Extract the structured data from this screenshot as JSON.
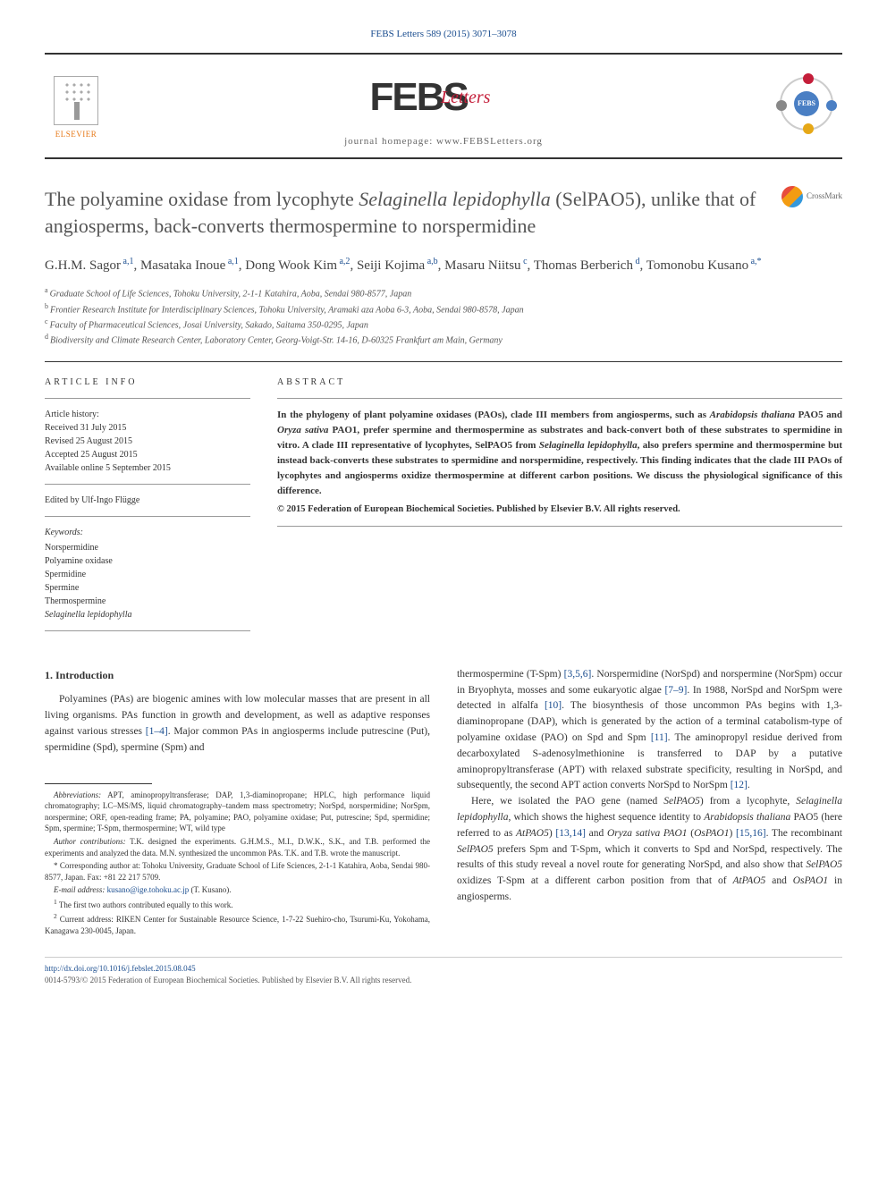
{
  "header": {
    "citation": "FEBS Letters 589 (2015) 3071–3078",
    "elsevier_label": "ELSEVIER",
    "journal_name_main": "FEBS",
    "journal_name_sub": "Letters",
    "homepage_label": "journal homepage: ",
    "homepage_url": "www.FEBSLetters.org",
    "febs_badge_text": "FEBS",
    "crossmark_label": "CrossMark"
  },
  "article": {
    "title_pre": "The polyamine oxidase from lycophyte ",
    "title_italic": "Selaginella lepidophylla",
    "title_post": " (SelPAO5), unlike that of angiosperms, back-converts thermospermine to norspermidine",
    "authors_html": "G.H.M. Sagor|a,1|, Masataka Inoue|a,1|, Dong Wook Kim|a,2|, Seiji Kojima|a,b|, Masaru Niitsu|c|, Thomas Berberich|d|, Tomonobu Kusano|a,*|",
    "authors": [
      {
        "name": "G.H.M. Sagor",
        "sup": "a,1"
      },
      {
        "name": "Masataka Inoue",
        "sup": "a,1"
      },
      {
        "name": "Dong Wook Kim",
        "sup": "a,2"
      },
      {
        "name": "Seiji Kojima",
        "sup": "a,b"
      },
      {
        "name": "Masaru Niitsu",
        "sup": "c"
      },
      {
        "name": "Thomas Berberich",
        "sup": "d"
      },
      {
        "name": "Tomonobu Kusano",
        "sup": "a,*"
      }
    ],
    "affiliations": [
      {
        "sup": "a",
        "text": "Graduate School of Life Sciences, Tohoku University, 2-1-1 Katahira, Aoba, Sendai 980-8577, Japan"
      },
      {
        "sup": "b",
        "text": "Frontier Research Institute for Interdisciplinary Sciences, Tohoku University, Aramaki aza Aoba 6-3, Aoba, Sendai 980-8578, Japan"
      },
      {
        "sup": "c",
        "text": "Faculty of Pharmaceutical Sciences, Josai University, Sakado, Saitama 350-0295, Japan"
      },
      {
        "sup": "d",
        "text": "Biodiversity and Climate Research Center, Laboratory Center, Georg-Voigt-Str. 14-16, D-60325 Frankfurt am Main, Germany"
      }
    ]
  },
  "info": {
    "heading": "ARTICLE INFO",
    "history_label": "Article history:",
    "received": "Received 31 July 2015",
    "revised": "Revised 25 August 2015",
    "accepted": "Accepted 25 August 2015",
    "online": "Available online 5 September 2015",
    "editor": "Edited by Ulf-Ingo Flügge",
    "keywords_label": "Keywords:",
    "keywords": [
      "Norspermidine",
      "Polyamine oxidase",
      "Spermidine",
      "Spermine",
      "Thermospermine",
      "Selaginella lepidophylla"
    ]
  },
  "abstract": {
    "heading": "ABSTRACT",
    "text_parts": [
      {
        "t": "In the phylogeny of plant polyamine oxidases (PAOs), clade III members from angiosperms, such as ",
        "i": false
      },
      {
        "t": "Arabidopsis thaliana",
        "i": true
      },
      {
        "t": " PAO5 and ",
        "i": false
      },
      {
        "t": "Oryza sativa",
        "i": true
      },
      {
        "t": " PAO1, prefer spermine and thermospermine as substrates and back-convert both of these substrates to spermidine in vitro. A clade III representative of lycophytes, SelPAO5 from ",
        "i": false
      },
      {
        "t": "Selaginella lepidophylla",
        "i": true
      },
      {
        "t": ", also prefers spermine and thermospermine but instead back-converts these substrates to spermidine and norspermidine, respectively. This finding indicates that the clade III PAOs of lycophytes and angiosperms oxidize thermospermine at different carbon positions. We discuss the physiological significance of this difference.",
        "i": false
      }
    ],
    "copyright": "© 2015 Federation of European Biochemical Societies. Published by Elsevier B.V. All rights reserved."
  },
  "body": {
    "section1_heading": "1. Introduction",
    "col1_paras": [
      "Polyamines (PAs) are biogenic amines with low molecular masses that are present in all living organisms. PAs function in growth and development, as well as adaptive responses against various stresses [1–4]. Major common PAs in angiosperms include putrescine (Put), spermidine (Spd), spermine (Spm) and"
    ],
    "col1_ref": "[1–4]",
    "col2_paras": [
      "thermospermine (T-Spm) [3,5,6]. Norspermidine (NorSpd) and norspermine (NorSpm) occur in Bryophyta, mosses and some eukaryotic algae [7–9]. In 1988, NorSpd and NorSpm were detected in alfalfa [10]. The biosynthesis of those uncommon PAs begins with 1,3-diaminopropane (DAP), which is generated by the action of a terminal catabolism-type of polyamine oxidase (PAO) on Spd and Spm [11]. The aminopropyl residue derived from decarboxylated S-adenosylmethionine is transferred to DAP by a putative aminopropyltransferase (APT) with relaxed substrate specificity, resulting in NorSpd, and subsequently, the second APT action converts NorSpd to NorSpm [12].",
      "Here, we isolated the PAO gene (named SelPAO5) from a lycophyte, Selaginella lepidophylla, which shows the highest sequence identity to Arabidopsis thaliana PAO5 (here referred to as AtPAO5) [13,14] and Oryza sativa PAO1 (OsPAO1) [15,16]. The recombinant SelPAO5 prefers Spm and T-Spm, which it converts to Spd and NorSpd, respectively. The results of this study reveal a novel route for generating NorSpd, and also show that SelPAO5 oxidizes T-Spm at a different carbon position from that of AtPAO5 and OsPAO1 in angiosperms."
    ],
    "col2_refs": [
      "[3,5,6]",
      "[7–9]",
      "[10]",
      "[11]",
      "[12]",
      "[13,14]",
      "[15,16]"
    ]
  },
  "footnotes": {
    "abbrev_label": "Abbreviations:",
    "abbrev_text": " APT, aminopropyltransferase; DAP, 1,3-diaminopropane; HPLC, high performance liquid chromatography; LC–MS/MS, liquid chromatography–tandem mass spectrometry; NorSpd, norspermidine; NorSpm, norspermine; ORF, open-reading frame; PA, polyamine; PAO, polyamine oxidase; Put, putrescine; Spd, spermidine; Spm, spermine; T-Spm, thermospermine; WT, wild type",
    "contrib_label": "Author contributions:",
    "contrib_text": " T.K. designed the experiments. G.H.M.S., M.I., D.W.K., S.K., and T.B. performed the experiments and analyzed the data. M.N. synthesized the uncommon PAs. T.K. and T.B. wrote the manuscript.",
    "corr_label": "*",
    "corr_text": " Corresponding author at: Tohoku University, Graduate School of Life Sciences, 2-1-1 Katahira, Aoba, Sendai 980-8577, Japan. Fax: +81 22 217 5709.",
    "email_label": "E-mail address:",
    "email": " kusano@ige.tohoku.ac.jp",
    "email_person": " (T. Kusano).",
    "note1_sup": "1",
    "note1": " The first two authors contributed equally to this work.",
    "note2_sup": "2",
    "note2": " Current address: RIKEN Center for Sustainable Resource Science, 1-7-22 Suehiro-cho, Tsurumi-Ku, Yokohama, Kanagawa 230-0045, Japan."
  },
  "footer": {
    "doi": "http://dx.doi.org/10.1016/j.febslet.2015.08.045",
    "issn_line": "0014-5793/© 2015 Federation of European Biochemical Societies. Published by Elsevier B.V. All rights reserved."
  },
  "colors": {
    "link": "#1a4d8f",
    "elsevier_orange": "#e67817",
    "letters_red": "#c41e3a",
    "text": "#333333",
    "rule": "#333333"
  }
}
